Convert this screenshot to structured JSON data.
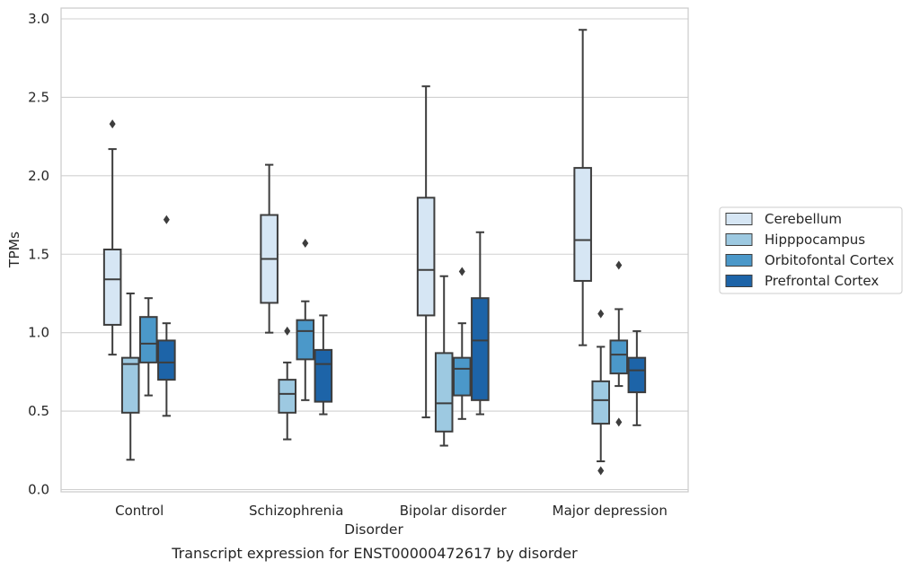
{
  "caption": "Transcript expression for ENST00000472617 by disorder",
  "chart_data": {
    "type": "box",
    "xlabel": "Disorder",
    "ylabel": "TPMs",
    "ylim": [
      0.0,
      3.0
    ],
    "yticks": [
      "0.0",
      "0.5",
      "1.0",
      "1.5",
      "2.0",
      "2.5",
      "3.0"
    ],
    "grid": "horizontal",
    "legend_position": "right",
    "categories": [
      "Control",
      "Schizophrenia",
      "Bipolar disorder",
      "Major depression"
    ],
    "series": [
      {
        "name": "Cerebellum",
        "color": "#d6e6f4",
        "boxes": [
          {
            "whislo": 0.86,
            "q1": 1.05,
            "med": 1.34,
            "q3": 1.53,
            "whishi": 2.17,
            "fliers": [
              2.33
            ]
          },
          {
            "whislo": 1.0,
            "q1": 1.19,
            "med": 1.47,
            "q3": 1.75,
            "whishi": 2.07,
            "fliers": []
          },
          {
            "whislo": 0.46,
            "q1": 1.11,
            "med": 1.4,
            "q3": 1.86,
            "whishi": 2.57,
            "fliers": []
          },
          {
            "whislo": 0.92,
            "q1": 1.33,
            "med": 1.59,
            "q3": 2.05,
            "whishi": 2.93,
            "fliers": []
          }
        ]
      },
      {
        "name": "Hipppocampus",
        "color": "#9dc9e1",
        "boxes": [
          {
            "whislo": 0.19,
            "q1": 0.49,
            "med": 0.8,
            "q3": 0.84,
            "whishi": 1.25,
            "fliers": []
          },
          {
            "whislo": 0.32,
            "q1": 0.49,
            "med": 0.61,
            "q3": 0.7,
            "whishi": 0.81,
            "fliers": [
              1.01
            ]
          },
          {
            "whislo": 0.28,
            "q1": 0.37,
            "med": 0.55,
            "q3": 0.87,
            "whishi": 1.36,
            "fliers": []
          },
          {
            "whislo": 0.18,
            "q1": 0.42,
            "med": 0.57,
            "q3": 0.69,
            "whishi": 0.91,
            "fliers": [
              1.12,
              0.12
            ]
          }
        ]
      },
      {
        "name": "Orbitofontal Cortex",
        "color": "#4b98c9",
        "boxes": [
          {
            "whislo": 0.6,
            "q1": 0.81,
            "med": 0.93,
            "q3": 1.1,
            "whishi": 1.22,
            "fliers": []
          },
          {
            "whislo": 0.57,
            "q1": 0.83,
            "med": 1.01,
            "q3": 1.08,
            "whishi": 1.2,
            "fliers": [
              1.57
            ]
          },
          {
            "whislo": 0.45,
            "q1": 0.6,
            "med": 0.77,
            "q3": 0.84,
            "whishi": 1.06,
            "fliers": [
              1.39
            ]
          },
          {
            "whislo": 0.66,
            "q1": 0.74,
            "med": 0.86,
            "q3": 0.95,
            "whishi": 1.15,
            "fliers": [
              1.43,
              0.43
            ]
          }
        ]
      },
      {
        "name": "Prefrontal Cortex",
        "color": "#1d64a8",
        "boxes": [
          {
            "whislo": 0.47,
            "q1": 0.7,
            "med": 0.81,
            "q3": 0.95,
            "whishi": 1.06,
            "fliers": [
              1.72
            ]
          },
          {
            "whislo": 0.48,
            "q1": 0.56,
            "med": 0.8,
            "q3": 0.89,
            "whishi": 1.11,
            "fliers": []
          },
          {
            "whislo": 0.48,
            "q1": 0.57,
            "med": 0.95,
            "q3": 1.22,
            "whishi": 1.64,
            "fliers": []
          },
          {
            "whislo": 0.41,
            "q1": 0.62,
            "med": 0.76,
            "q3": 0.84,
            "whishi": 1.01,
            "fliers": []
          }
        ]
      }
    ]
  }
}
